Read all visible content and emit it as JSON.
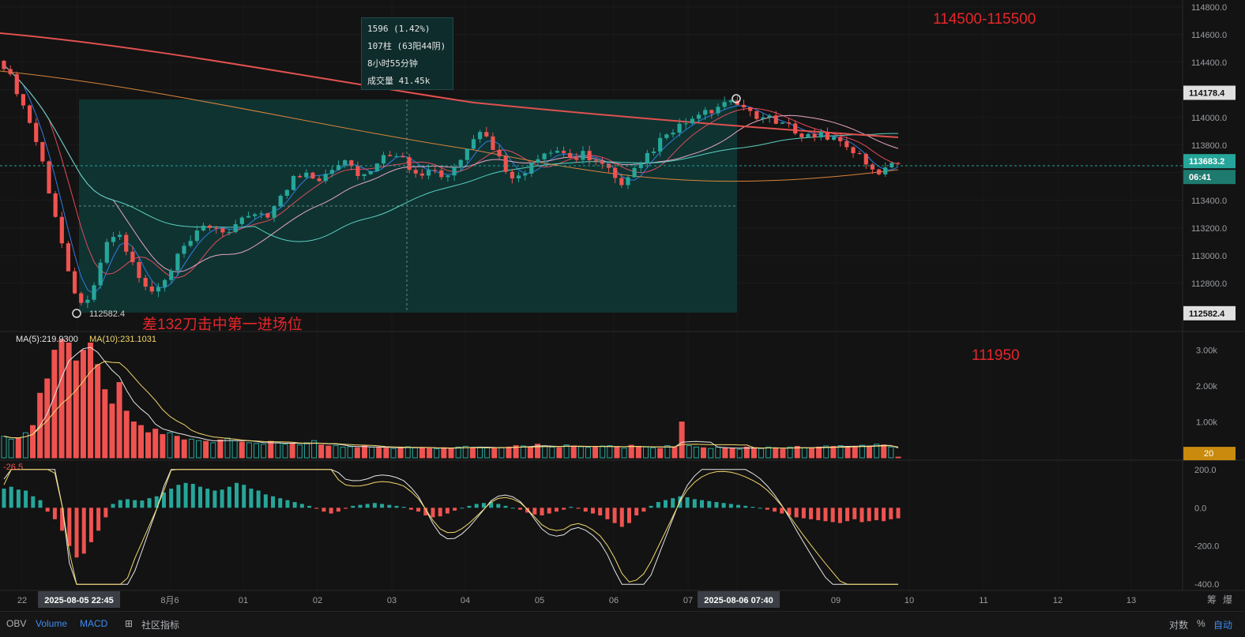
{
  "chart_data": [
    {
      "type": "candlestick",
      "y_axis_ticks": [
        "114800.0",
        "114600.0",
        "114400.0",
        "114200.0",
        "114000.0",
        "113800.0",
        "113600.0",
        "113400.0",
        "113200.0",
        "113000.0",
        "112800.0"
      ],
      "ylim": [
        112450,
        114850
      ],
      "price_tags": {
        "high": "114178.4",
        "current": "113683.2",
        "countdown": "06:41",
        "low": "112582.4"
      },
      "low_marker_label": "112582.4",
      "tooltip": [
        "1596 (1.42%)",
        "107柱 (63阳44阴)",
        "8小时55分钟",
        "成交量 41.45k"
      ],
      "annotations": {
        "target": "114500-115500",
        "note": "差132刀击中第一进场位",
        "level": "111950"
      },
      "measure_range": {
        "from": 112582.4,
        "to": 114178.4
      },
      "close_path": [
        114380,
        114200,
        113980,
        113700,
        113300,
        112950,
        112620,
        112760,
        113050,
        113180,
        112980,
        112780,
        112720,
        112840,
        113020,
        113120,
        113220,
        113200,
        113160,
        113260,
        113320,
        113300,
        113420,
        113560,
        113600,
        113560,
        113640,
        113700,
        113600,
        113580,
        113700,
        113760,
        113660,
        113600,
        113620,
        113540,
        113660,
        113780,
        113900,
        113760,
        113600,
        113560,
        113660,
        113720,
        113760,
        113700,
        113740,
        113680,
        113620,
        113480,
        113600,
        113720,
        113820,
        113880,
        113960,
        114000,
        114040,
        114080,
        114100,
        114060,
        114000,
        113980,
        113940,
        113900,
        113860,
        113880,
        113840,
        113800,
        113700,
        113600,
        113620,
        113683
      ]
    },
    {
      "type": "bar",
      "name": "Volume",
      "ma_labels": {
        "ma5": "MA(5):219.9300",
        "ma10": "MA(10):231.1031"
      },
      "y_axis_ticks": [
        "3.00k",
        "2.00k",
        "1.00k"
      ],
      "ylim": [
        0,
        3300
      ],
      "value_tag": "20",
      "values": [
        600,
        520,
        540,
        700,
        900,
        1800,
        2200,
        3000,
        3300,
        3200,
        2700,
        3000,
        3200,
        2600,
        1900,
        1500,
        2100,
        1300,
        1000,
        900,
        700,
        800,
        650,
        700,
        600,
        500,
        520,
        480,
        460,
        420,
        500,
        550,
        480,
        440,
        420,
        400,
        380,
        460,
        420,
        380,
        400,
        360,
        420,
        480,
        360,
        330,
        340,
        300,
        310,
        280,
        330,
        300,
        290,
        270,
        260,
        300,
        310,
        280,
        280,
        260,
        250,
        280,
        270,
        300,
        320,
        280,
        300,
        280,
        260,
        290,
        300,
        340,
        330,
        300,
        380,
        320,
        300,
        280,
        360,
        330,
        310,
        290,
        300,
        330,
        340,
        300,
        270,
        350,
        320,
        300,
        280,
        260,
        340,
        300,
        1000,
        340,
        300,
        280,
        260,
        300,
        280,
        260,
        240,
        300,
        280,
        260,
        300,
        260,
        240,
        300,
        320,
        280,
        260,
        300,
        330,
        320,
        340,
        300,
        320,
        350,
        330,
        380,
        360,
        300,
        20
      ],
      "up": [
        true,
        true,
        false,
        true,
        false,
        false,
        false,
        false,
        false,
        false,
        false,
        false,
        false,
        false,
        false,
        false,
        false,
        false,
        false,
        false,
        false,
        false,
        false,
        true,
        false,
        false,
        true,
        true,
        false,
        true,
        false,
        true,
        true,
        false,
        true,
        true,
        true,
        false,
        true,
        true,
        false,
        true,
        true,
        true,
        false,
        false,
        true,
        true,
        true,
        false,
        false,
        true,
        false,
        false,
        true,
        false,
        true,
        true,
        false,
        false,
        true,
        false,
        false,
        true,
        true,
        false,
        true,
        true,
        false,
        true,
        false,
        false,
        true,
        false,
        false,
        true,
        true,
        false,
        true,
        false,
        true,
        true,
        false,
        true,
        true,
        false,
        true,
        false,
        false,
        true,
        true,
        false,
        true,
        false,
        false,
        true,
        true,
        false,
        true,
        true,
        false,
        false,
        true,
        false,
        false,
        true,
        true,
        false,
        false,
        true,
        false,
        true,
        false,
        false,
        true,
        false,
        true,
        false,
        false,
        true,
        false,
        true,
        false,
        true,
        false
      ]
    },
    {
      "type": "bar",
      "name": "MACD",
      "label": "-26.5",
      "y_axis_ticks": [
        "200.0",
        "0.0",
        "-200.0",
        "-400.0"
      ],
      "ylim": [
        -420,
        220
      ],
      "values": [
        100,
        110,
        95,
        90,
        60,
        40,
        -20,
        -60,
        -120,
        -200,
        -260,
        -240,
        -180,
        -120,
        -50,
        20,
        40,
        45,
        40,
        38,
        50,
        60,
        80,
        100,
        120,
        130,
        125,
        110,
        100,
        90,
        95,
        110,
        130,
        120,
        100,
        90,
        70,
        60,
        50,
        40,
        30,
        20,
        10,
        -5,
        -20,
        -30,
        -20,
        -5,
        10,
        15,
        20,
        25,
        20,
        15,
        10,
        5,
        -10,
        -20,
        -40,
        -50,
        -45,
        -30,
        -15,
        0,
        10,
        20,
        25,
        30,
        20,
        10,
        0,
        -10,
        -25,
        -35,
        -40,
        -30,
        -20,
        -10,
        5,
        -5,
        -20,
        -30,
        -40,
        -60,
        -80,
        -100,
        -80,
        -40,
        -20,
        10,
        30,
        40,
        50,
        60,
        55,
        45,
        40,
        35,
        30,
        25,
        20,
        15,
        10,
        5,
        0,
        -10,
        -20,
        -30,
        -40,
        -50,
        -55,
        -60,
        -65,
        -70,
        -75,
        -80,
        -70,
        -60,
        -75,
        -70,
        -65,
        -70,
        -60,
        -55
      ],
      "x_ticks": [
        "22",
        "2025-08-05 22:45",
        "8月6",
        "01",
        "02",
        "03",
        "04",
        "05",
        "06",
        "07",
        "2025-08-06 07:40",
        "09",
        "10",
        "11",
        "12",
        "13"
      ],
      "corner_labels": [
        "筹",
        "爆"
      ]
    }
  ],
  "toolbar": {
    "items": [
      "OBV",
      "Volume",
      "MACD"
    ],
    "community": "社区指标",
    "right": [
      "对数",
      "%",
      "自动"
    ]
  },
  "colors": {
    "up": "#26a69a",
    "down": "#ef5350",
    "accent": "#2962ff",
    "range_fill": "#0f3533",
    "annotation": "#e5262b"
  }
}
